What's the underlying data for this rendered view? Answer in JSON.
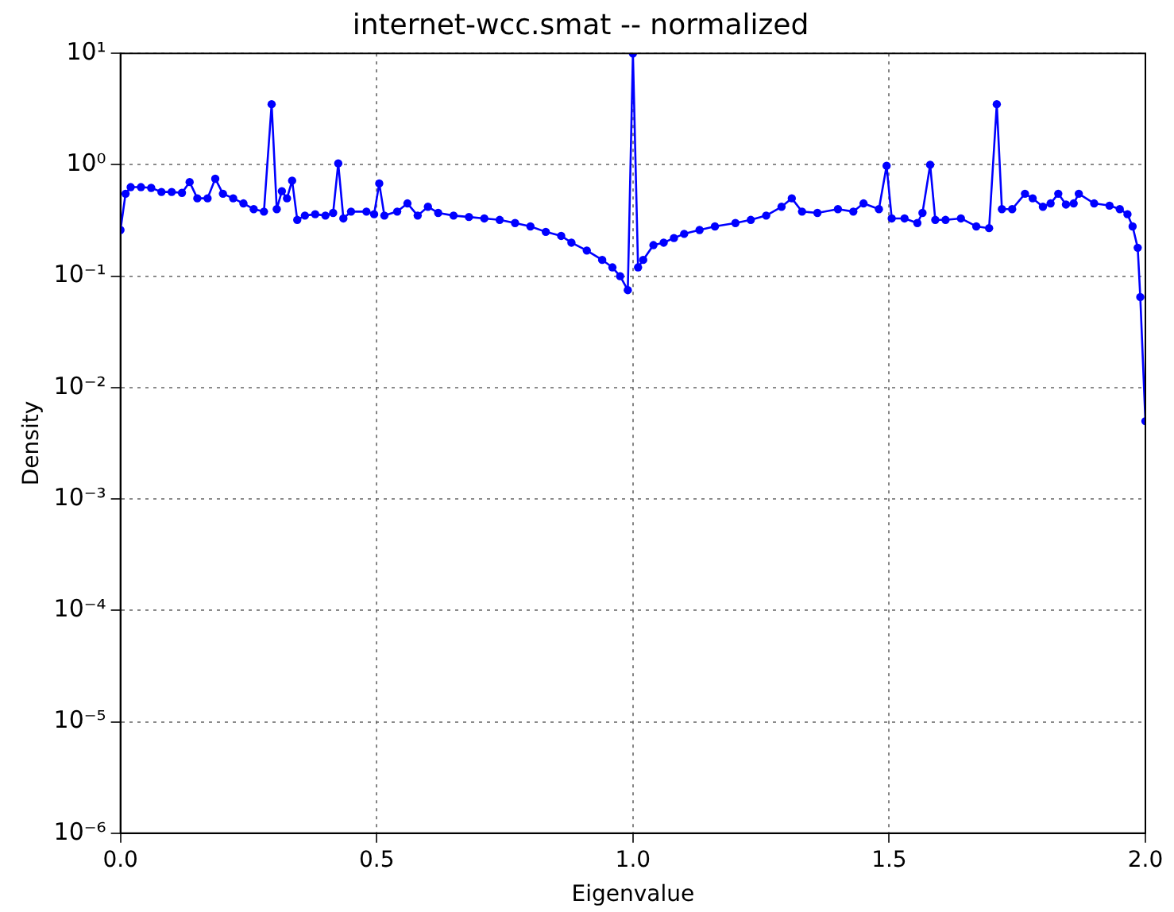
{
  "chart_data": {
    "type": "line",
    "title": "internet-wcc.smat -- normalized",
    "xlabel": "Eigenvalue",
    "ylabel": "Density",
    "log": "y",
    "grid": true,
    "legend": false,
    "marker": "circle",
    "line_style": "solid",
    "xlim": [
      0,
      2
    ],
    "ylim": [
      1e-06,
      10
    ],
    "xticks": [
      {
        "value": 0,
        "label": "0.0"
      },
      {
        "value": 0.5,
        "label": "0.5"
      },
      {
        "value": 1,
        "label": "1.0"
      },
      {
        "value": 1.5,
        "label": "1.5"
      },
      {
        "value": 2,
        "label": "2.0"
      }
    ],
    "yticks": [
      {
        "value": 1e-06,
        "label": "10⁻⁶"
      },
      {
        "value": 1e-05,
        "label": "10⁻⁵"
      },
      {
        "value": 0.0001,
        "label": "10⁻⁴"
      },
      {
        "value": 0.001,
        "label": "10⁻³"
      },
      {
        "value": 0.01,
        "label": "10⁻²"
      },
      {
        "value": 0.1,
        "label": "10⁻¹"
      },
      {
        "value": 1,
        "label": "10⁰"
      },
      {
        "value": 10,
        "label": "10¹"
      }
    ],
    "series": [
      {
        "color": "#0000ff",
        "x": [
          0,
          0.01,
          0.02,
          0.04,
          0.06,
          0.08,
          0.1,
          0.12,
          0.135,
          0.15,
          0.17,
          0.185,
          0.2,
          0.22,
          0.24,
          0.26,
          0.28,
          0.295,
          0.305,
          0.315,
          0.325,
          0.335,
          0.345,
          0.36,
          0.38,
          0.4,
          0.415,
          0.425,
          0.435,
          0.45,
          0.48,
          0.495,
          0.505,
          0.515,
          0.54,
          0.56,
          0.58,
          0.6,
          0.62,
          0.65,
          0.68,
          0.71,
          0.74,
          0.77,
          0.8,
          0.83,
          0.86,
          0.88,
          0.91,
          0.94,
          0.96,
          0.975,
          0.99,
          1,
          1.01,
          1.02,
          1.04,
          1.06,
          1.08,
          1.1,
          1.13,
          1.16,
          1.2,
          1.23,
          1.26,
          1.29,
          1.31,
          1.33,
          1.36,
          1.4,
          1.43,
          1.45,
          1.48,
          1.495,
          1.505,
          1.53,
          1.555,
          1.565,
          1.58,
          1.59,
          1.61,
          1.64,
          1.67,
          1.695,
          1.71,
          1.72,
          1.74,
          1.765,
          1.78,
          1.8,
          1.815,
          1.83,
          1.845,
          1.86,
          1.87,
          1.9,
          1.93,
          1.95,
          1.965,
          1.975,
          1.985,
          1.99,
          2
        ],
        "values": [
          0.26,
          0.55,
          0.63,
          0.63,
          0.62,
          0.57,
          0.57,
          0.56,
          0.7,
          0.5,
          0.5,
          0.75,
          0.55,
          0.5,
          0.45,
          0.4,
          0.38,
          3.5,
          0.4,
          0.58,
          0.5,
          0.72,
          0.32,
          0.35,
          0.36,
          0.35,
          0.37,
          1.03,
          0.33,
          0.38,
          0.38,
          0.36,
          0.68,
          0.35,
          0.38,
          0.45,
          0.35,
          0.42,
          0.37,
          0.35,
          0.34,
          0.33,
          0.32,
          0.3,
          0.28,
          0.25,
          0.23,
          0.2,
          0.17,
          0.14,
          0.12,
          0.1,
          0.075,
          10,
          0.12,
          0.14,
          0.19,
          0.2,
          0.22,
          0.24,
          0.26,
          0.28,
          0.3,
          0.32,
          0.35,
          0.42,
          0.5,
          0.38,
          0.37,
          0.4,
          0.38,
          0.45,
          0.4,
          0.98,
          0.33,
          0.33,
          0.3,
          0.37,
          1,
          0.32,
          0.32,
          0.33,
          0.28,
          0.27,
          3.5,
          0.4,
          0.4,
          0.55,
          0.5,
          0.42,
          0.45,
          0.55,
          0.44,
          0.45,
          0.55,
          0.45,
          0.43,
          0.4,
          0.36,
          0.28,
          0.18,
          0.065,
          0.005
        ]
      }
    ]
  }
}
